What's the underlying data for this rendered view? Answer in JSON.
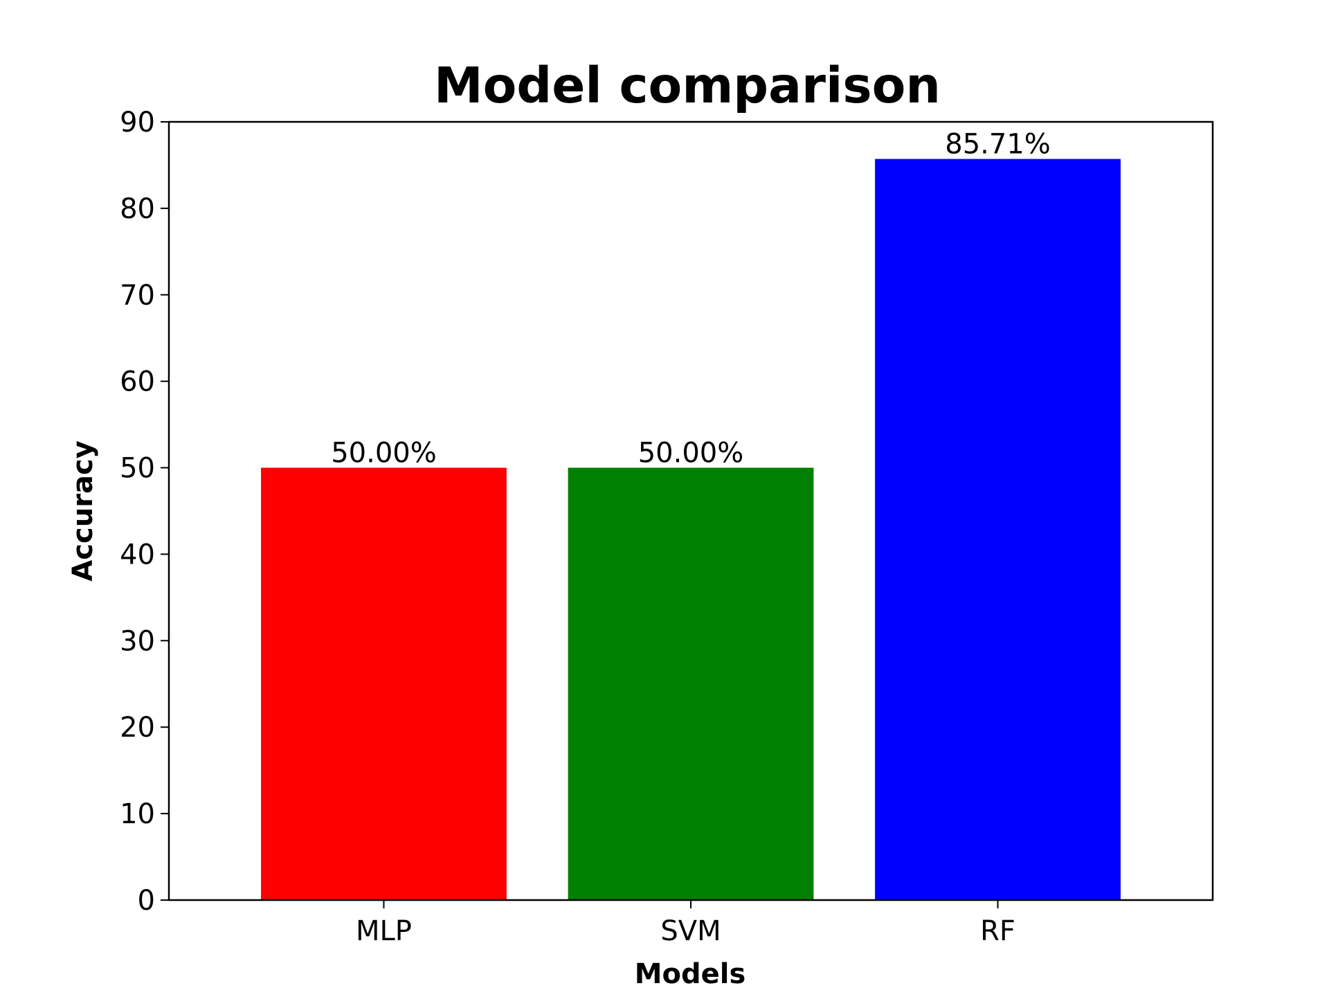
{
  "chart_data": {
    "type": "bar",
    "title": "Model comparison",
    "xlabel": "Models",
    "ylabel": "Accuracy",
    "categories": [
      "MLP",
      "SVM",
      "RF"
    ],
    "values": [
      50.0,
      50.0,
      85.71
    ],
    "value_labels": [
      "50.00%",
      "50.00%",
      "85.71%"
    ],
    "colors": [
      "#ff0000",
      "#008000",
      "#0000ff"
    ],
    "ylim": [
      0,
      90
    ],
    "yticks": [
      0,
      10,
      20,
      30,
      40,
      50,
      60,
      70,
      80,
      90
    ],
    "grid": false,
    "legend": "none"
  }
}
